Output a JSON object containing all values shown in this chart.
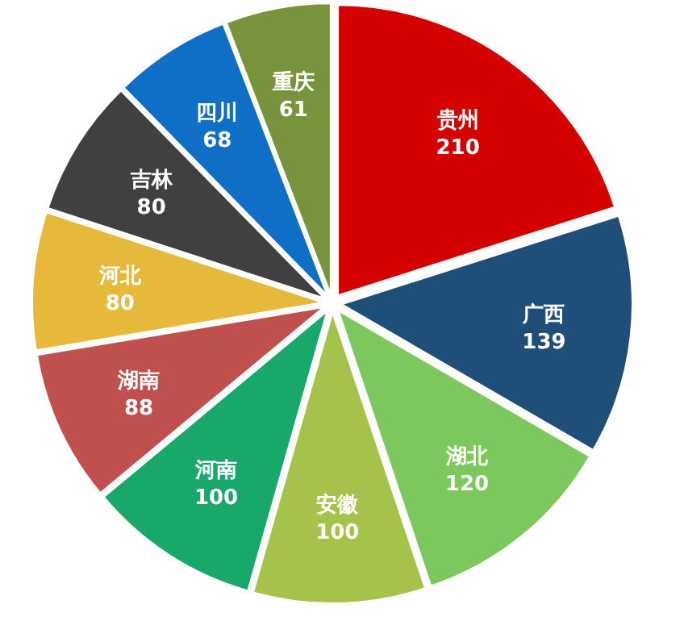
{
  "chart_data": {
    "type": "pie",
    "categories": [
      "贵州",
      "广西",
      "湖北",
      "安徽",
      "河南",
      "湖南",
      "河北",
      "吉林",
      "四川",
      "重庆"
    ],
    "values": [
      210,
      139,
      120,
      100,
      100,
      88,
      80,
      80,
      68,
      61
    ],
    "colors": [
      "#d40000",
      "#1f4e79",
      "#7dc85c",
      "#a5c24a",
      "#17a86a",
      "#c0504d",
      "#e7b93a",
      "#404040",
      "#0f6fc6",
      "#77933c"
    ],
    "data_labels": true
  }
}
